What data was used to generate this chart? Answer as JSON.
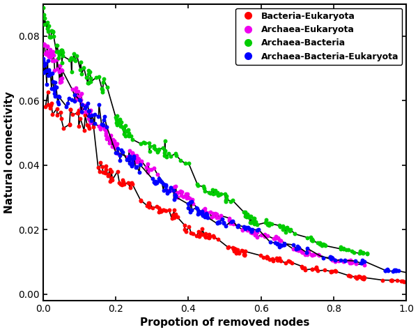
{
  "xlabel": "Propotion of removed nodes",
  "ylabel": "Natural connectivity",
  "xlim": [
    0.0,
    1.0
  ],
  "ylim": [
    -0.002,
    0.09
  ],
  "yticks": [
    0.0,
    0.02,
    0.04,
    0.06,
    0.08
  ],
  "xticks": [
    0.0,
    0.2,
    0.4,
    0.6,
    0.8,
    1.0
  ],
  "legend": [
    {
      "label": "Bacteria-Eukaryota",
      "color": "#FF0000"
    },
    {
      "label": "Archaea-Eukaryota",
      "color": "#EE00EE"
    },
    {
      "label": "Archaea-Bacteria",
      "color": "#00CC00"
    },
    {
      "label": "Archaea-Bacteria-Eukaryota",
      "color": "#0000FF"
    }
  ],
  "line_color": "#000000",
  "figsize": [
    6.0,
    4.76
  ],
  "dpi": 100
}
